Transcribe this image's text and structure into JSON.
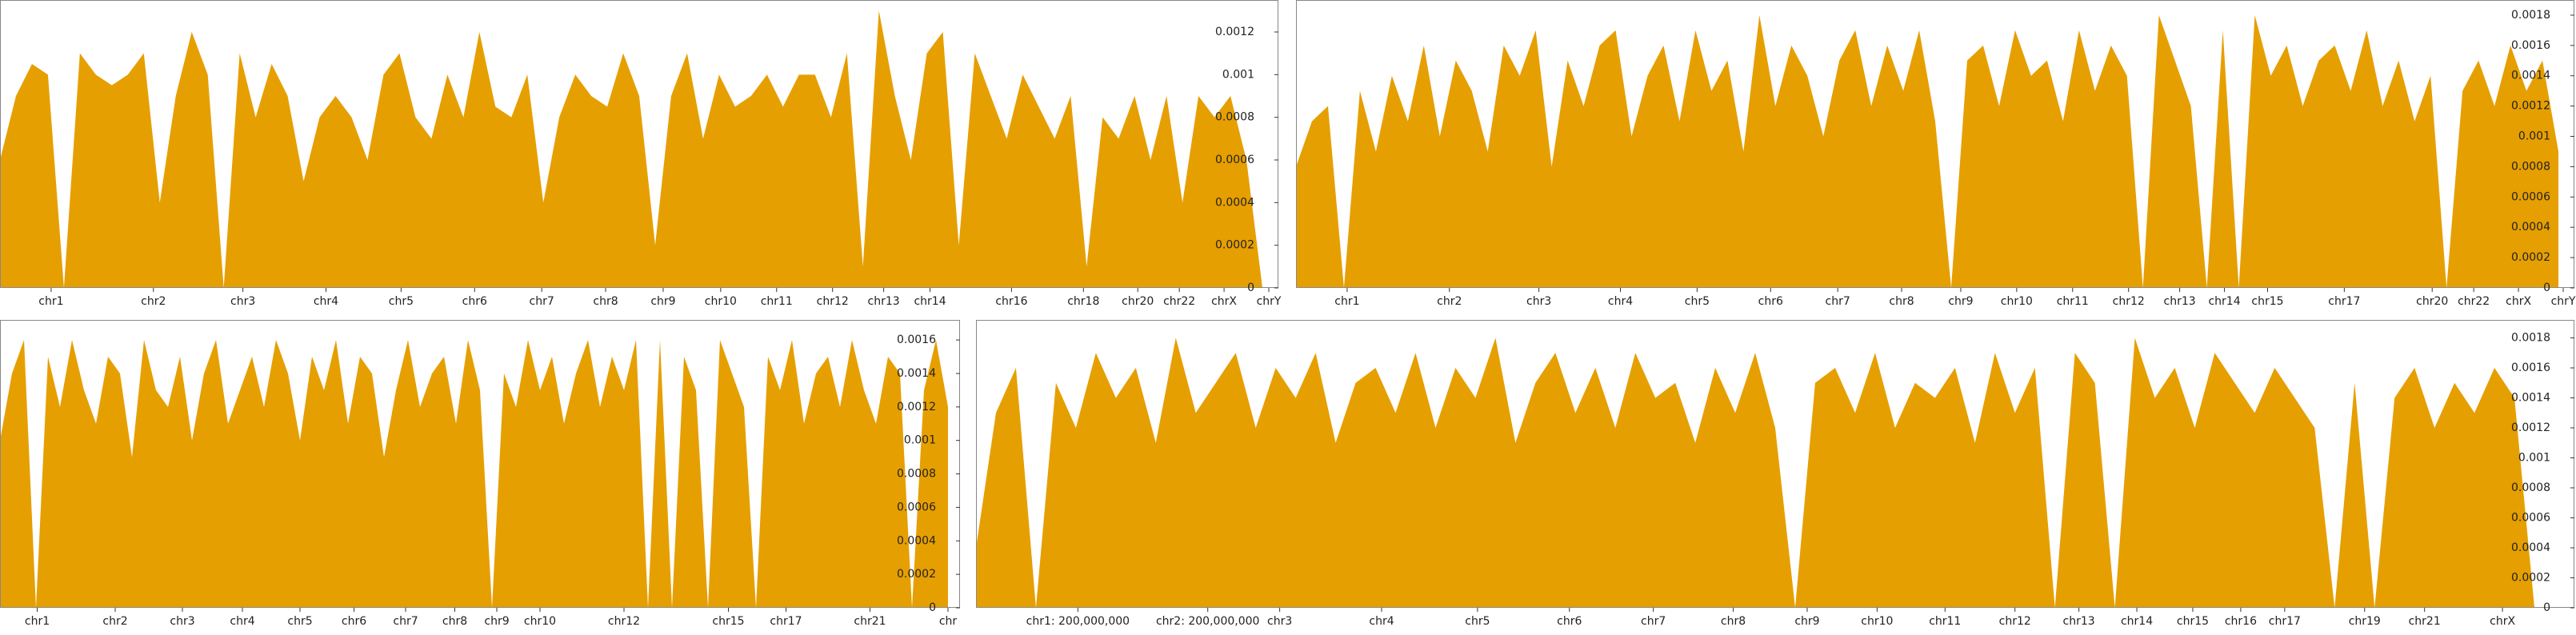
{
  "chart_data": [
    {
      "type": "area",
      "color": "#e69f00",
      "xlim": [
        0,
        80
      ],
      "ylim": [
        0,
        0.00135
      ],
      "yticks": [
        0,
        0.0002,
        0.0004,
        0.0006,
        0.0008,
        0.001,
        0.0012
      ],
      "xticks": [
        {
          "value": 3.2,
          "label": "chr1"
        },
        {
          "value": 9.6,
          "label": "chr2"
        },
        {
          "value": 15.2,
          "label": "chr3"
        },
        {
          "value": 20.4,
          "label": "chr4"
        },
        {
          "value": 25.1,
          "label": "chr5"
        },
        {
          "value": 29.7,
          "label": "chr6"
        },
        {
          "value": 33.9,
          "label": "chr7"
        },
        {
          "value": 37.9,
          "label": "chr8"
        },
        {
          "value": 41.5,
          "label": "chr9"
        },
        {
          "value": 45.1,
          "label": "chr10"
        },
        {
          "value": 48.6,
          "label": "chr11"
        },
        {
          "value": 52.1,
          "label": "chr12"
        },
        {
          "value": 55.3,
          "label": "chr13"
        },
        {
          "value": 58.2,
          "label": "chr14"
        },
        {
          "value": 63.3,
          "label": "chr16"
        },
        {
          "value": 67.8,
          "label": "chr18"
        },
        {
          "value": 71.2,
          "label": "chr20"
        },
        {
          "value": 73.8,
          "label": "chr22"
        },
        {
          "value": 76.6,
          "label": "chrX"
        },
        {
          "value": 79.4,
          "label": "chrY"
        }
      ],
      "values": [
        0.0006,
        0.0009,
        0.00105,
        0.001,
        0,
        0.0011,
        0.001,
        0.00095,
        0.001,
        0.0011,
        0.0004,
        0.0009,
        0.0012,
        0.001,
        0,
        0.0011,
        0.0008,
        0.00105,
        0.0009,
        0.0005,
        0.0008,
        0.0009,
        0.0008,
        0.0006,
        0.001,
        0.0011,
        0.0008,
        0.0007,
        0.001,
        0.0008,
        0.0012,
        0.00085,
        0.0008,
        0.001,
        0.0004,
        0.0008,
        0.001,
        0.0009,
        0.00085,
        0.0011,
        0.0009,
        0.0002,
        0.0009,
        0.0011,
        0.0007,
        0.001,
        0.00085,
        0.0009,
        0.001,
        0.00085,
        0.001,
        0.001,
        0.0008,
        0.0011,
        0.0001,
        0.0013,
        0.0009,
        0.0006,
        0.0011,
        0.0012,
        0.0002,
        0.0011,
        0.0009,
        0.0007,
        0.001,
        0.00085,
        0.0007,
        0.0009,
        0.0001,
        0.0008,
        0.0007,
        0.0009,
        0.0006,
        0.0009,
        0.0004,
        0.0009,
        0.0008,
        0.0009,
        0.0006,
        0
      ]
    },
    {
      "type": "area",
      "color": "#e69f00",
      "xlim": [
        0,
        80
      ],
      "ylim": [
        0,
        0.0019
      ],
      "yticks": [
        0,
        0.0002,
        0.0004,
        0.0006,
        0.0008,
        0.001,
        0.0012,
        0.0014,
        0.0016,
        0.0018
      ],
      "xticks": [
        {
          "value": 3.2,
          "label": "chr1"
        },
        {
          "value": 9.6,
          "label": "chr2"
        },
        {
          "value": 15.2,
          "label": "chr3"
        },
        {
          "value": 20.3,
          "label": "chr4"
        },
        {
          "value": 25.1,
          "label": "chr5"
        },
        {
          "value": 29.7,
          "label": "chr6"
        },
        {
          "value": 33.9,
          "label": "chr7"
        },
        {
          "value": 37.9,
          "label": "chr8"
        },
        {
          "value": 41.6,
          "label": "chr9"
        },
        {
          "value": 45.1,
          "label": "chr10"
        },
        {
          "value": 48.6,
          "label": "chr11"
        },
        {
          "value": 52.1,
          "label": "chr12"
        },
        {
          "value": 55.3,
          "label": "chr13"
        },
        {
          "value": 58.1,
          "label": "chr14"
        },
        {
          "value": 60.8,
          "label": "chr15"
        },
        {
          "value": 65.6,
          "label": "chr17"
        },
        {
          "value": 71.1,
          "label": "chr20"
        },
        {
          "value": 73.7,
          "label": "chr22"
        },
        {
          "value": 76.5,
          "label": "chrX"
        },
        {
          "value": 79.3,
          "label": "chrY"
        }
      ],
      "values": [
        0.0008,
        0.0011,
        0.0012,
        0,
        0.0013,
        0.0009,
        0.0014,
        0.0011,
        0.0016,
        0.001,
        0.0015,
        0.0013,
        0.0009,
        0.0016,
        0.0014,
        0.0017,
        0.0008,
        0.0015,
        0.0012,
        0.0016,
        0.0017,
        0.001,
        0.0014,
        0.0016,
        0.0011,
        0.0017,
        0.0013,
        0.0015,
        0.0009,
        0.0018,
        0.0012,
        0.0016,
        0.0014,
        0.001,
        0.0015,
        0.0017,
        0.0012,
        0.0016,
        0.0013,
        0.0017,
        0.0011,
        0,
        0.0015,
        0.0016,
        0.0012,
        0.0017,
        0.0014,
        0.0015,
        0.0011,
        0.0017,
        0.0013,
        0.0016,
        0.0014,
        0,
        0.0018,
        0.0015,
        0.0012,
        0,
        0.0017,
        0,
        0.0018,
        0.0014,
        0.0016,
        0.0012,
        0.0015,
        0.0016,
        0.0013,
        0.0017,
        0.0012,
        0.0015,
        0.0011,
        0.0014,
        0,
        0.0013,
        0.0015,
        0.0012,
        0.0016,
        0.0013,
        0.0015,
        0.0009
      ]
    },
    {
      "type": "area",
      "color": "#e69f00",
      "xlim": [
        0,
        80
      ],
      "ylim": [
        0,
        0.00172
      ],
      "yticks": [
        0,
        0.0002,
        0.0004,
        0.0006,
        0.0008,
        0.001,
        0.0012,
        0.0014,
        0.0016
      ],
      "xticks": [
        {
          "value": 3.1,
          "label": "chr1"
        },
        {
          "value": 9.6,
          "label": "chr2"
        },
        {
          "value": 15.2,
          "label": "chr3"
        },
        {
          "value": 20.2,
          "label": "chr4"
        },
        {
          "value": 25.0,
          "label": "chr5"
        },
        {
          "value": 29.5,
          "label": "chr6"
        },
        {
          "value": 33.8,
          "label": "chr7"
        },
        {
          "value": 37.9,
          "label": "chr8"
        },
        {
          "value": 41.4,
          "label": "chr9"
        },
        {
          "value": 45.0,
          "label": "chr10"
        },
        {
          "value": 52.0,
          "label": "chr12"
        },
        {
          "value": 60.7,
          "label": "chr15"
        },
        {
          "value": 65.5,
          "label": "chr17"
        },
        {
          "value": 72.5,
          "label": "chr21"
        },
        {
          "value": 79.0,
          "label": "chr"
        }
      ],
      "values": [
        0.001,
        0.0014,
        0.0016,
        0,
        0.0015,
        0.0012,
        0.0016,
        0.0013,
        0.0011,
        0.0015,
        0.0014,
        0.0009,
        0.0016,
        0.0013,
        0.0012,
        0.0015,
        0.001,
        0.0014,
        0.0016,
        0.0011,
        0.0013,
        0.0015,
        0.0012,
        0.0016,
        0.0014,
        0.001,
        0.0015,
        0.0013,
        0.0016,
        0.0011,
        0.0015,
        0.0014,
        0.0009,
        0.0013,
        0.0016,
        0.0012,
        0.0014,
        0.0015,
        0.0011,
        0.0016,
        0.0013,
        0,
        0.0014,
        0.0012,
        0.0016,
        0.0013,
        0.0015,
        0.0011,
        0.0014,
        0.0016,
        0.0012,
        0.0015,
        0.0013,
        0.0016,
        0,
        0.0016,
        0,
        0.0015,
        0.0013,
        0,
        0.0016,
        0.0014,
        0.0012,
        0,
        0.0015,
        0.0013,
        0.0016,
        0.0011,
        0.0014,
        0.0015,
        0.0012,
        0.0016,
        0.0013,
        0.0011,
        0.0015,
        0.0014,
        0,
        0.0013,
        0.0016,
        0.0012
      ]
    },
    {
      "type": "area",
      "color": "#e69f00",
      "xlim": [
        0,
        80
      ],
      "ylim": [
        0,
        0.00192
      ],
      "yticks": [
        0,
        0.0002,
        0.0004,
        0.0006,
        0.0008,
        0.001,
        0.0012,
        0.0014,
        0.0016,
        0.0018
      ],
      "xticks": [
        {
          "value": 5.1,
          "label": "chr1: 200,000,000"
        },
        {
          "value": 11.6,
          "label": "chr2: 200,000,000"
        },
        {
          "value": 15.2,
          "label": "chr3"
        },
        {
          "value": 20.3,
          "label": "chr4"
        },
        {
          "value": 25.1,
          "label": "chr5"
        },
        {
          "value": 29.7,
          "label": "chr6"
        },
        {
          "value": 33.9,
          "label": "chr7"
        },
        {
          "value": 37.9,
          "label": "chr8"
        },
        {
          "value": 41.6,
          "label": "chr9"
        },
        {
          "value": 45.1,
          "label": "chr10"
        },
        {
          "value": 48.5,
          "label": "chr11"
        },
        {
          "value": 52.0,
          "label": "chr12"
        },
        {
          "value": 55.2,
          "label": "chr13"
        },
        {
          "value": 58.1,
          "label": "chr14"
        },
        {
          "value": 60.9,
          "label": "chr15"
        },
        {
          "value": 63.3,
          "label": "chr16"
        },
        {
          "value": 65.5,
          "label": "chr17"
        },
        {
          "value": 69.5,
          "label": "chr19"
        },
        {
          "value": 72.5,
          "label": "chr21"
        },
        {
          "value": 76.4,
          "label": "chrX"
        }
      ],
      "values": [
        0.0004,
        0.0013,
        0.0016,
        0,
        0.0015,
        0.0012,
        0.0017,
        0.0014,
        0.0016,
        0.0011,
        0.0018,
        0.0013,
        0.0015,
        0.0017,
        0.0012,
        0.0016,
        0.0014,
        0.0017,
        0.0011,
        0.0015,
        0.0016,
        0.0013,
        0.0017,
        0.0012,
        0.0016,
        0.0014,
        0.0018,
        0.0011,
        0.0015,
        0.0017,
        0.0013,
        0.0016,
        0.0012,
        0.0017,
        0.0014,
        0.0015,
        0.0011,
        0.0016,
        0.0013,
        0.0017,
        0.0012,
        0,
        0.0015,
        0.0016,
        0.0013,
        0.0017,
        0.0012,
        0.0015,
        0.0014,
        0.0016,
        0.0011,
        0.0017,
        0.0013,
        0.0016,
        0,
        0.0017,
        0.0015,
        0,
        0.0018,
        0.0014,
        0.0016,
        0.0012,
        0.0017,
        0.0015,
        0.0013,
        0.0016,
        0.0014,
        0.0012,
        0,
        0.0015,
        0,
        0.0014,
        0.0016,
        0.0012,
        0.0015,
        0.0013,
        0.0016,
        0.0014,
        0,
        0
      ]
    }
  ]
}
